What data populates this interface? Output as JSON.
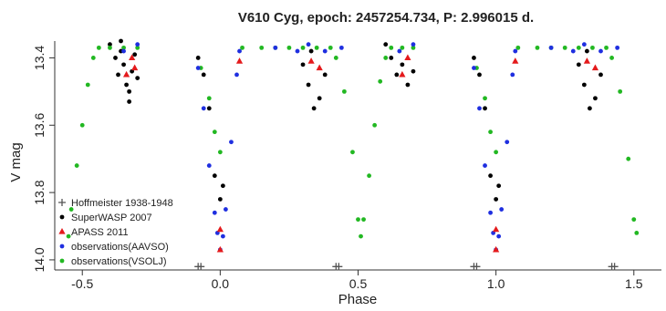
{
  "chart_data": {
    "type": "scatter",
    "title": "V610 Cyg, epoch: 2457254.734, P: 2.996015 d.",
    "xlabel": "Phase",
    "ylabel": "V mag",
    "xlim": [
      -0.6,
      1.6
    ],
    "ylim": [
      14.03,
      13.35
    ],
    "y_inverted": true,
    "xticks": [
      -0.5,
      0.0,
      0.5,
      1.0,
      1.5
    ],
    "xtick_labels": [
      "-0.5",
      "0.0",
      "0.5",
      "1.0",
      "1.5"
    ],
    "yticks": [
      13.4,
      13.6,
      13.8,
      14.0
    ],
    "ytick_labels": [
      "13.4",
      "13.6",
      "13.8",
      "14.0"
    ],
    "grid": false,
    "legend_position": "bottom-left",
    "series": [
      {
        "name": "Hoffmeister 1938-1948",
        "marker": "plus",
        "color": "#555555",
        "points": [
          [
            -0.08,
            14.02
          ],
          [
            -0.07,
            14.02
          ],
          [
            0.42,
            14.02
          ],
          [
            0.43,
            14.02
          ],
          [
            0.92,
            14.02
          ],
          [
            0.93,
            14.02
          ],
          [
            1.42,
            14.02
          ],
          [
            1.43,
            14.02
          ]
        ]
      },
      {
        "name": "SuperWASP 2007",
        "marker": "circle",
        "color": "#000000",
        "points": [
          [
            -0.4,
            13.36
          ],
          [
            -0.38,
            13.4
          ],
          [
            -0.37,
            13.45
          ],
          [
            -0.36,
            13.38
          ],
          [
            -0.35,
            13.42
          ],
          [
            -0.34,
            13.48
          ],
          [
            -0.33,
            13.5
          ],
          [
            -0.32,
            13.44
          ],
          [
            -0.31,
            13.39
          ],
          [
            -0.3,
            13.46
          ],
          [
            -0.36,
            13.35
          ],
          [
            -0.33,
            13.53
          ],
          [
            -0.08,
            13.4
          ],
          [
            -0.06,
            13.45
          ],
          [
            -0.04,
            13.55
          ],
          [
            -0.02,
            13.75
          ],
          [
            0.0,
            13.82
          ],
          [
            0.01,
            13.78
          ],
          [
            0.3,
            13.42
          ],
          [
            0.32,
            13.48
          ],
          [
            0.34,
            13.55
          ],
          [
            0.36,
            13.52
          ],
          [
            0.38,
            13.45
          ],
          [
            0.33,
            13.38
          ],
          [
            0.6,
            13.36
          ],
          [
            0.62,
            13.4
          ],
          [
            0.64,
            13.45
          ],
          [
            0.66,
            13.42
          ],
          [
            0.68,
            13.48
          ],
          [
            0.7,
            13.44
          ],
          [
            0.92,
            13.4
          ],
          [
            0.94,
            13.45
          ],
          [
            0.96,
            13.55
          ],
          [
            0.98,
            13.75
          ],
          [
            1.0,
            13.82
          ],
          [
            1.01,
            13.78
          ],
          [
            1.3,
            13.42
          ],
          [
            1.32,
            13.48
          ],
          [
            1.34,
            13.55
          ],
          [
            1.36,
            13.52
          ],
          [
            1.38,
            13.45
          ],
          [
            1.33,
            13.38
          ]
        ]
      },
      {
        "name": "APASS 2011",
        "marker": "triangle",
        "color": "#e41a1c",
        "points": [
          [
            -0.32,
            13.4
          ],
          [
            -0.34,
            13.45
          ],
          [
            -0.31,
            13.43
          ],
          [
            0.0,
            13.91
          ],
          [
            0.0,
            13.97
          ],
          [
            0.07,
            13.41
          ],
          [
            0.33,
            13.41
          ],
          [
            0.36,
            13.43
          ],
          [
            0.68,
            13.4
          ],
          [
            0.66,
            13.45
          ],
          [
            1.0,
            13.91
          ],
          [
            1.0,
            13.97
          ],
          [
            1.07,
            13.41
          ],
          [
            1.33,
            13.41
          ],
          [
            1.36,
            13.43
          ]
        ]
      },
      {
        "name": "observations(AAVSO)",
        "marker": "circle",
        "color": "#1f2fe0",
        "points": [
          [
            -0.35,
            13.38
          ],
          [
            -0.3,
            13.36
          ],
          [
            -0.08,
            13.43
          ],
          [
            -0.06,
            13.55
          ],
          [
            -0.04,
            13.72
          ],
          [
            -0.02,
            13.86
          ],
          [
            -0.01,
            13.92
          ],
          [
            0.0,
            13.97
          ],
          [
            0.01,
            13.93
          ],
          [
            0.02,
            13.85
          ],
          [
            0.04,
            13.65
          ],
          [
            0.06,
            13.45
          ],
          [
            0.07,
            13.38
          ],
          [
            0.2,
            13.37
          ],
          [
            0.28,
            13.38
          ],
          [
            0.32,
            13.36
          ],
          [
            0.38,
            13.38
          ],
          [
            0.44,
            13.37
          ],
          [
            0.65,
            13.38
          ],
          [
            0.7,
            13.36
          ],
          [
            0.92,
            13.43
          ],
          [
            0.94,
            13.55
          ],
          [
            0.96,
            13.72
          ],
          [
            0.98,
            13.86
          ],
          [
            0.99,
            13.92
          ],
          [
            1.0,
            13.97
          ],
          [
            1.01,
            13.93
          ],
          [
            1.02,
            13.85
          ],
          [
            1.04,
            13.65
          ],
          [
            1.06,
            13.45
          ],
          [
            1.07,
            13.38
          ],
          [
            1.2,
            13.37
          ],
          [
            1.28,
            13.38
          ],
          [
            1.32,
            13.36
          ],
          [
            1.38,
            13.38
          ],
          [
            1.44,
            13.37
          ]
        ]
      },
      {
        "name": "observations(VSOLJ)",
        "marker": "circle",
        "color": "#22b822",
        "points": [
          [
            -0.55,
            13.93
          ],
          [
            -0.54,
            13.85
          ],
          [
            -0.52,
            13.72
          ],
          [
            -0.5,
            13.6
          ],
          [
            -0.48,
            13.48
          ],
          [
            -0.46,
            13.4
          ],
          [
            -0.44,
            13.37
          ],
          [
            -0.4,
            13.37
          ],
          [
            -0.35,
            13.37
          ],
          [
            -0.3,
            13.37
          ],
          [
            -0.07,
            13.43
          ],
          [
            -0.04,
            13.52
          ],
          [
            -0.02,
            13.62
          ],
          [
            0.0,
            13.68
          ],
          [
            0.08,
            13.37
          ],
          [
            0.15,
            13.37
          ],
          [
            0.2,
            13.37
          ],
          [
            0.25,
            13.37
          ],
          [
            0.3,
            13.37
          ],
          [
            0.35,
            13.37
          ],
          [
            0.4,
            13.37
          ],
          [
            0.42,
            13.4
          ],
          [
            0.45,
            13.5
          ],
          [
            0.48,
            13.68
          ],
          [
            0.5,
            13.88
          ],
          [
            0.51,
            13.93
          ],
          [
            0.52,
            13.88
          ],
          [
            0.54,
            13.75
          ],
          [
            0.56,
            13.6
          ],
          [
            0.58,
            13.47
          ],
          [
            0.6,
            13.4
          ],
          [
            0.62,
            13.37
          ],
          [
            0.66,
            13.37
          ],
          [
            0.7,
            13.37
          ],
          [
            0.93,
            13.43
          ],
          [
            0.96,
            13.52
          ],
          [
            0.98,
            13.62
          ],
          [
            1.0,
            13.68
          ],
          [
            1.08,
            13.37
          ],
          [
            1.15,
            13.37
          ],
          [
            1.2,
            13.37
          ],
          [
            1.25,
            13.37
          ],
          [
            1.3,
            13.37
          ],
          [
            1.35,
            13.37
          ],
          [
            1.4,
            13.37
          ],
          [
            1.42,
            13.4
          ],
          [
            1.45,
            13.5
          ],
          [
            1.48,
            13.7
          ],
          [
            1.5,
            13.88
          ],
          [
            1.51,
            13.92
          ]
        ]
      }
    ]
  }
}
